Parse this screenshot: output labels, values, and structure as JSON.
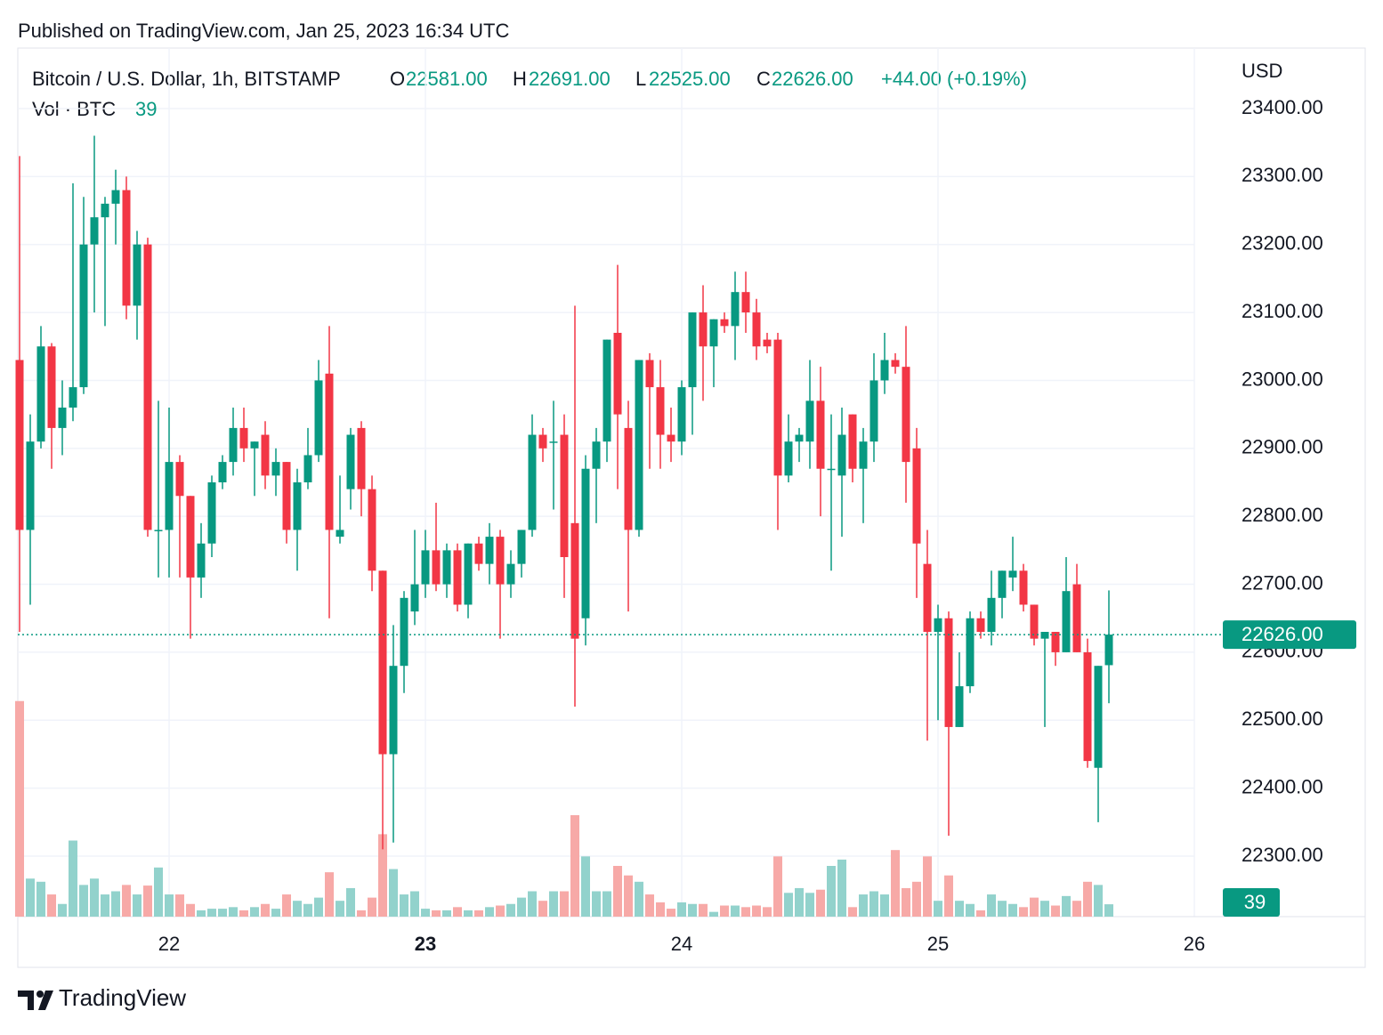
{
  "chart_data": {
    "type": "candlestick",
    "published": "Published on TradingView.com, Jan 25, 2023 16:34 UTC",
    "symbol": "Bitcoin / U.S. Dollar, 1h, BITSTAMP",
    "header": {
      "o_key": "O",
      "o": "22581.00",
      "h_key": "H",
      "h": "22691.00",
      "l_key": "L",
      "l": "22525.00",
      "c_key": "C",
      "c": "22626.00",
      "change": "+44.00 (+0.19%)"
    },
    "volume_title": "Vol · BTC",
    "currency": "USD",
    "brand": "TradingView",
    "last_label": "22626.00",
    "up_color": "#089981",
    "down_color": "#f23645",
    "up_volume_color": "#92d2cc",
    "down_volume_color": "#f7a9a7",
    "grid": true,
    "xlim": [
      9.833,
      120
    ],
    "xticks": [
      {
        "value": 24,
        "label": "22"
      },
      {
        "value": 48,
        "label": "23",
        "bold": true
      },
      {
        "value": 72,
        "label": "24"
      },
      {
        "value": 96,
        "label": "25"
      },
      {
        "value": 120,
        "label": "26"
      }
    ],
    "ylim": [
      22211,
      23489
    ],
    "yticks": [
      {
        "value": 22300,
        "label": "22300.00"
      },
      {
        "value": 22400,
        "label": "22400.00"
      },
      {
        "value": 22500,
        "label": "22500.00"
      },
      {
        "value": 22600,
        "label": "22600.00"
      },
      {
        "value": 22700,
        "label": "22700.00"
      },
      {
        "value": 22800,
        "label": "22800.00"
      },
      {
        "value": 22900,
        "label": "22900.00"
      },
      {
        "value": 23000,
        "label": "23000.00"
      },
      {
        "value": 23100,
        "label": "23100.00"
      },
      {
        "value": 23200,
        "label": "23200.00"
      },
      {
        "value": 23300,
        "label": "23300.00"
      },
      {
        "value": 23400,
        "label": "23400.00"
      }
    ],
    "volume_lim": [
      0,
      800
    ],
    "x": [
      10,
      11,
      12,
      13,
      14,
      15,
      16,
      17,
      18,
      19,
      20,
      21,
      22,
      23,
      24,
      25,
      26,
      27,
      28,
      29,
      30,
      31,
      32,
      33,
      34,
      35,
      36,
      37,
      38,
      39,
      40,
      41,
      42,
      43,
      44,
      45,
      46,
      47,
      48,
      49,
      50,
      51,
      52,
      53,
      54,
      55,
      56,
      57,
      58,
      59,
      60,
      61,
      62,
      63,
      64,
      65,
      66,
      67,
      68,
      69,
      70,
      71,
      72,
      73,
      74,
      75,
      76,
      77,
      78,
      79,
      80,
      81,
      82,
      83,
      84,
      85,
      86,
      87,
      88,
      89,
      90,
      91,
      92,
      93,
      94,
      95,
      96,
      97,
      98,
      99,
      100,
      101,
      102,
      103,
      104,
      105,
      106,
      107,
      108,
      109,
      110,
      111,
      112
    ],
    "open": [
      23030,
      22780,
      22910,
      23050,
      22930,
      22960,
      22990,
      23200,
      23240,
      23260,
      23280,
      23110,
      23200,
      22780,
      22780,
      22880,
      22830,
      22710,
      22760,
      22850,
      22880,
      22930,
      22900,
      22920,
      22860,
      22880,
      22780,
      22850,
      22890,
      23010,
      22770,
      22840,
      22930,
      22840,
      22720,
      22450,
      22580,
      22660,
      22700,
      22750,
      22700,
      22750,
      22670,
      22760,
      22730,
      22770,
      22700,
      22730,
      22780,
      22920,
      22910,
      22920,
      22790,
      22650,
      22870,
      22910,
      23070,
      22930,
      22780,
      23030,
      22990,
      22920,
      22910,
      22990,
      23100,
      23050,
      23090,
      23080,
      23130,
      23100,
      23060,
      23060,
      22860,
      22910,
      22910,
      22970,
      22870,
      22860,
      22950,
      22870,
      22910,
      23000,
      23030,
      23020,
      22900,
      22730,
      22630,
      22650,
      22490,
      22550,
      22650,
      22630,
      22680,
      22710,
      22720,
      22670,
      22620,
      22630,
      22600,
      22700,
      22600,
      22430,
      22581
    ],
    "high": [
      23330,
      22950,
      23080,
      23055,
      23000,
      23290,
      23270,
      23360,
      23270,
      23310,
      23300,
      23220,
      23210,
      22970,
      22960,
      22890,
      22830,
      22790,
      22860,
      22890,
      22960,
      22960,
      22910,
      22940,
      22900,
      22880,
      22870,
      22930,
      23030,
      23080,
      22860,
      22930,
      22940,
      22860,
      22720,
      22640,
      22690,
      22780,
      22780,
      22820,
      22760,
      22760,
      22760,
      22770,
      22790,
      22780,
      22750,
      22780,
      22950,
      22930,
      22970,
      22950,
      23110,
      22890,
      22930,
      23060,
      23170,
      22970,
      23030,
      23040,
      23030,
      22960,
      23000,
      23100,
      23140,
      23090,
      23100,
      23160,
      23160,
      23120,
      23070,
      23070,
      22950,
      22930,
      23030,
      23020,
      22950,
      22960,
      22950,
      22930,
      23040,
      23070,
      23040,
      23080,
      22930,
      22780,
      22670,
      22660,
      22600,
      22660,
      22660,
      22720,
      22720,
      22770,
      22730,
      22670,
      22630,
      22630,
      22740,
      22730,
      22620,
      22580,
      22691
    ],
    "low": [
      22630,
      22670,
      22900,
      22870,
      22890,
      22940,
      22980,
      23100,
      23080,
      23200,
      23090,
      23060,
      22770,
      22710,
      22710,
      22710,
      22620,
      22680,
      22740,
      22840,
      22860,
      22880,
      22830,
      22840,
      22830,
      22760,
      22720,
      22840,
      22880,
      22650,
      22760,
      22810,
      22800,
      22690,
      22310,
      22320,
      22540,
      22640,
      22680,
      22690,
      22680,
      22660,
      22650,
      22720,
      22700,
      22620,
      22680,
      22710,
      22770,
      22880,
      22810,
      22680,
      22520,
      22610,
      22790,
      22880,
      22840,
      22660,
      22770,
      22870,
      22870,
      22880,
      22890,
      22920,
      22970,
      22990,
      23070,
      23030,
      23070,
      23030,
      23040,
      22780,
      22850,
      22880,
      22870,
      22800,
      22720,
      22770,
      22850,
      22790,
      22880,
      22980,
      23010,
      22820,
      22680,
      22470,
      22500,
      22330,
      22490,
      22540,
      22620,
      22610,
      22650,
      22690,
      22660,
      22610,
      22490,
      22580,
      22600,
      22600,
      22430,
      22350,
      22525
    ],
    "close": [
      22780,
      22910,
      23050,
      22930,
      22960,
      22990,
      23200,
      23240,
      23260,
      23280,
      23110,
      23200,
      22780,
      22780,
      22880,
      22830,
      22710,
      22760,
      22850,
      22880,
      22930,
      22900,
      22910,
      22860,
      22880,
      22780,
      22850,
      22890,
      23000,
      22780,
      22780,
      22920,
      22840,
      22720,
      22450,
      22580,
      22680,
      22700,
      22750,
      22700,
      22750,
      22670,
      22760,
      22730,
      22770,
      22700,
      22730,
      22780,
      22920,
      22900,
      22910,
      22740,
      22620,
      22870,
      22910,
      23060,
      22950,
      22780,
      23030,
      22990,
      22920,
      22910,
      22990,
      23100,
      23050,
      23090,
      23080,
      23130,
      23100,
      23050,
      23050,
      22860,
      22910,
      22920,
      22970,
      22870,
      22870,
      22920,
      22870,
      22910,
      23000,
      23030,
      23020,
      22880,
      22760,
      22630,
      22650,
      22490,
      22550,
      22650,
      22630,
      22680,
      22720,
      22720,
      22670,
      22620,
      22630,
      22600,
      22690,
      22600,
      22440,
      22580,
      22626
    ],
    "volume": [
      680,
      120,
      110,
      70,
      40,
      240,
      100,
      120,
      70,
      80,
      100,
      70,
      98,
      155,
      70,
      70,
      40,
      20,
      25,
      25,
      30,
      20,
      30,
      40,
      25,
      70,
      50,
      40,
      60,
      140,
      50,
      90,
      20,
      60,
      260,
      150,
      70,
      80,
      25,
      20,
      20,
      30,
      20,
      20,
      30,
      35,
      40,
      60,
      80,
      50,
      80,
      80,
      320,
      190,
      80,
      80,
      160,
      130,
      110,
      70,
      45,
      25,
      45,
      40,
      40,
      15,
      35,
      35,
      30,
      35,
      30,
      190,
      75,
      90,
      75,
      85,
      160,
      180,
      30,
      70,
      80,
      70,
      210,
      90,
      110,
      190,
      50,
      130,
      50,
      40,
      20,
      70,
      50,
      40,
      30,
      60,
      50,
      35,
      65,
      50,
      110,
      100,
      39
    ]
  }
}
